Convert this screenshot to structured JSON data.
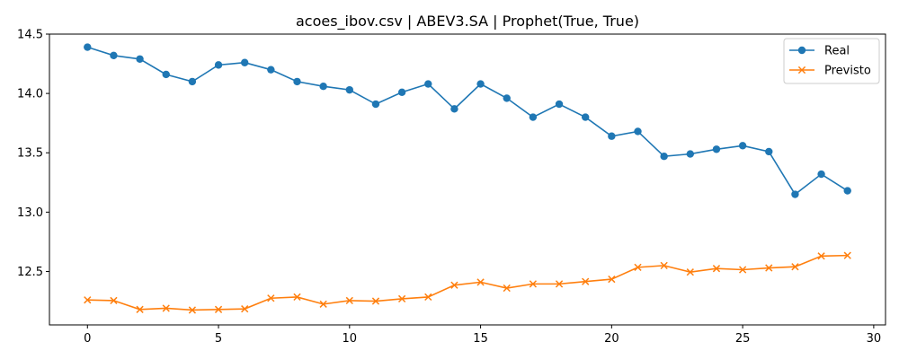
{
  "chart_data": {
    "type": "line",
    "title": "acoes_ibov.csv | ABEV3.SA | Prophet(True, True)",
    "xlabel": "",
    "ylabel": "",
    "xlim": [
      -1.45,
      30.45
    ],
    "ylim": [
      12.05,
      14.5
    ],
    "xticks": [
      0,
      5,
      10,
      15,
      20,
      25,
      30
    ],
    "yticks": [
      12.5,
      13.0,
      13.5,
      14.0,
      14.5
    ],
    "xtick_labels": [
      "0",
      "5",
      "10",
      "15",
      "20",
      "25",
      "30"
    ],
    "ytick_labels": [
      "12.5",
      "13.0",
      "13.5",
      "14.0",
      "14.5"
    ],
    "grid": false,
    "legend_position": "top-right",
    "x": [
      0,
      1,
      2,
      3,
      4,
      5,
      6,
      7,
      8,
      9,
      10,
      11,
      12,
      13,
      14,
      15,
      16,
      17,
      18,
      19,
      20,
      21,
      22,
      23,
      24,
      25,
      26,
      27,
      28,
      29
    ],
    "series": [
      {
        "name": "Real",
        "color": "#1f77b4",
        "marker": "circle",
        "values": [
          14.39,
          14.32,
          14.29,
          14.16,
          14.1,
          14.24,
          14.26,
          14.2,
          14.1,
          14.06,
          14.03,
          13.91,
          14.01,
          14.08,
          13.87,
          14.08,
          13.96,
          13.8,
          13.91,
          13.8,
          13.64,
          13.68,
          13.47,
          13.49,
          13.53,
          13.56,
          13.51,
          13.15,
          13.32,
          13.18
        ]
      },
      {
        "name": "Previsto",
        "color": "#ff7f0e",
        "marker": "x",
        "values": [
          12.26,
          12.255,
          12.18,
          12.19,
          12.175,
          12.18,
          12.185,
          12.275,
          12.285,
          12.225,
          12.255,
          12.25,
          12.27,
          12.285,
          12.385,
          12.41,
          12.36,
          12.395,
          12.395,
          12.415,
          12.435,
          12.535,
          12.55,
          12.495,
          12.525,
          12.515,
          12.53,
          12.54,
          12.63,
          12.635
        ]
      }
    ]
  }
}
